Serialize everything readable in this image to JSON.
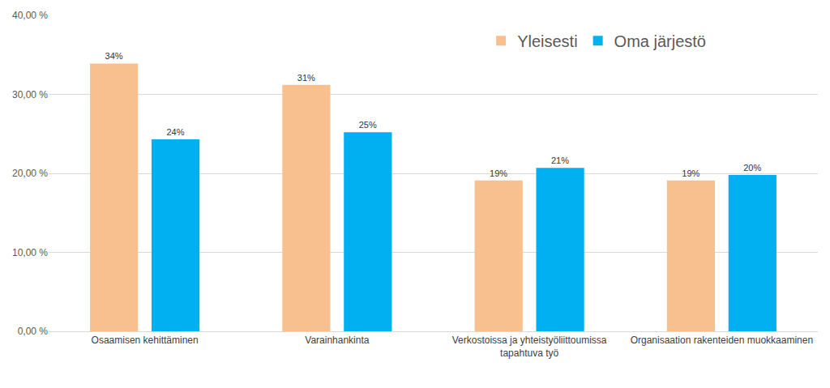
{
  "chart_data": {
    "type": "bar",
    "categories": [
      "Osaamisen kehittäminen",
      "Varainhankinta",
      "Verkostoissa ja yhteistyöliittoumissa tapahtuva työ",
      "Organisaation rakenteiden muokkaaminen"
    ],
    "series": [
      {
        "name": "Yleisesti",
        "color": "#F8C08F",
        "values": [
          33.9,
          31.2,
          19.1,
          19.1
        ],
        "value_labels": [
          "34%",
          "31%",
          "19%",
          "19%"
        ]
      },
      {
        "name": "Oma järjestö",
        "color": "#00B0F0",
        "values": [
          24.3,
          25.2,
          20.7,
          19.8
        ],
        "value_labels": [
          "24%",
          "25%",
          "21%",
          "20%"
        ]
      }
    ],
    "ylim": [
      0,
      40
    ],
    "yticks": [
      {
        "value": 0,
        "label": "0,00 %"
      },
      {
        "value": 10,
        "label": "10,00 %"
      },
      {
        "value": 20,
        "label": "20,00 %"
      },
      {
        "value": 30,
        "label": "30,00 %"
      },
      {
        "value": 40,
        "label": "40,00 %"
      }
    ],
    "grid": true,
    "legend": "top right",
    "data_labels": true
  }
}
